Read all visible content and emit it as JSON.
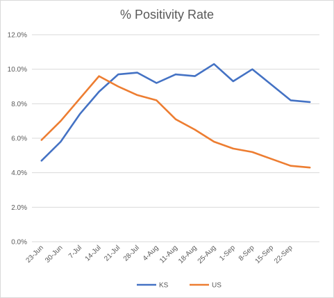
{
  "chart_data": {
    "type": "line",
    "title": "% Positivity Rate",
    "xlabel": "",
    "ylabel": "",
    "categories": [
      "23-Jun",
      "30-Jun",
      "7-Jul",
      "14-Jul",
      "21-Jul",
      "28-Jul",
      "4-Aug",
      "11-Aug",
      "18-Aug",
      "25-Aug",
      "1-Sep",
      "8-Sep",
      "15-Sep",
      "22-Sep",
      ""
    ],
    "series": [
      {
        "name": "KS",
        "color": "#4472C4",
        "values": [
          4.7,
          5.8,
          7.4,
          8.7,
          9.7,
          9.8,
          9.2,
          9.7,
          9.6,
          10.3,
          9.3,
          10.0,
          9.1,
          8.2,
          8.1
        ]
      },
      {
        "name": "US",
        "color": "#ED7D31",
        "values": [
          5.9,
          7.0,
          8.3,
          9.6,
          9.0,
          8.5,
          8.2,
          7.1,
          6.5,
          5.8,
          5.4,
          5.2,
          4.8,
          4.4,
          4.3
        ]
      }
    ],
    "ylim": [
      0,
      12
    ],
    "yticks": [
      0,
      2,
      4,
      6,
      8,
      10,
      12
    ],
    "ytick_labels": [
      "0.0%",
      "2.0%",
      "4.0%",
      "6.0%",
      "8.0%",
      "10.0%",
      "12.0%"
    ],
    "grid": true,
    "legend": "bottom"
  }
}
